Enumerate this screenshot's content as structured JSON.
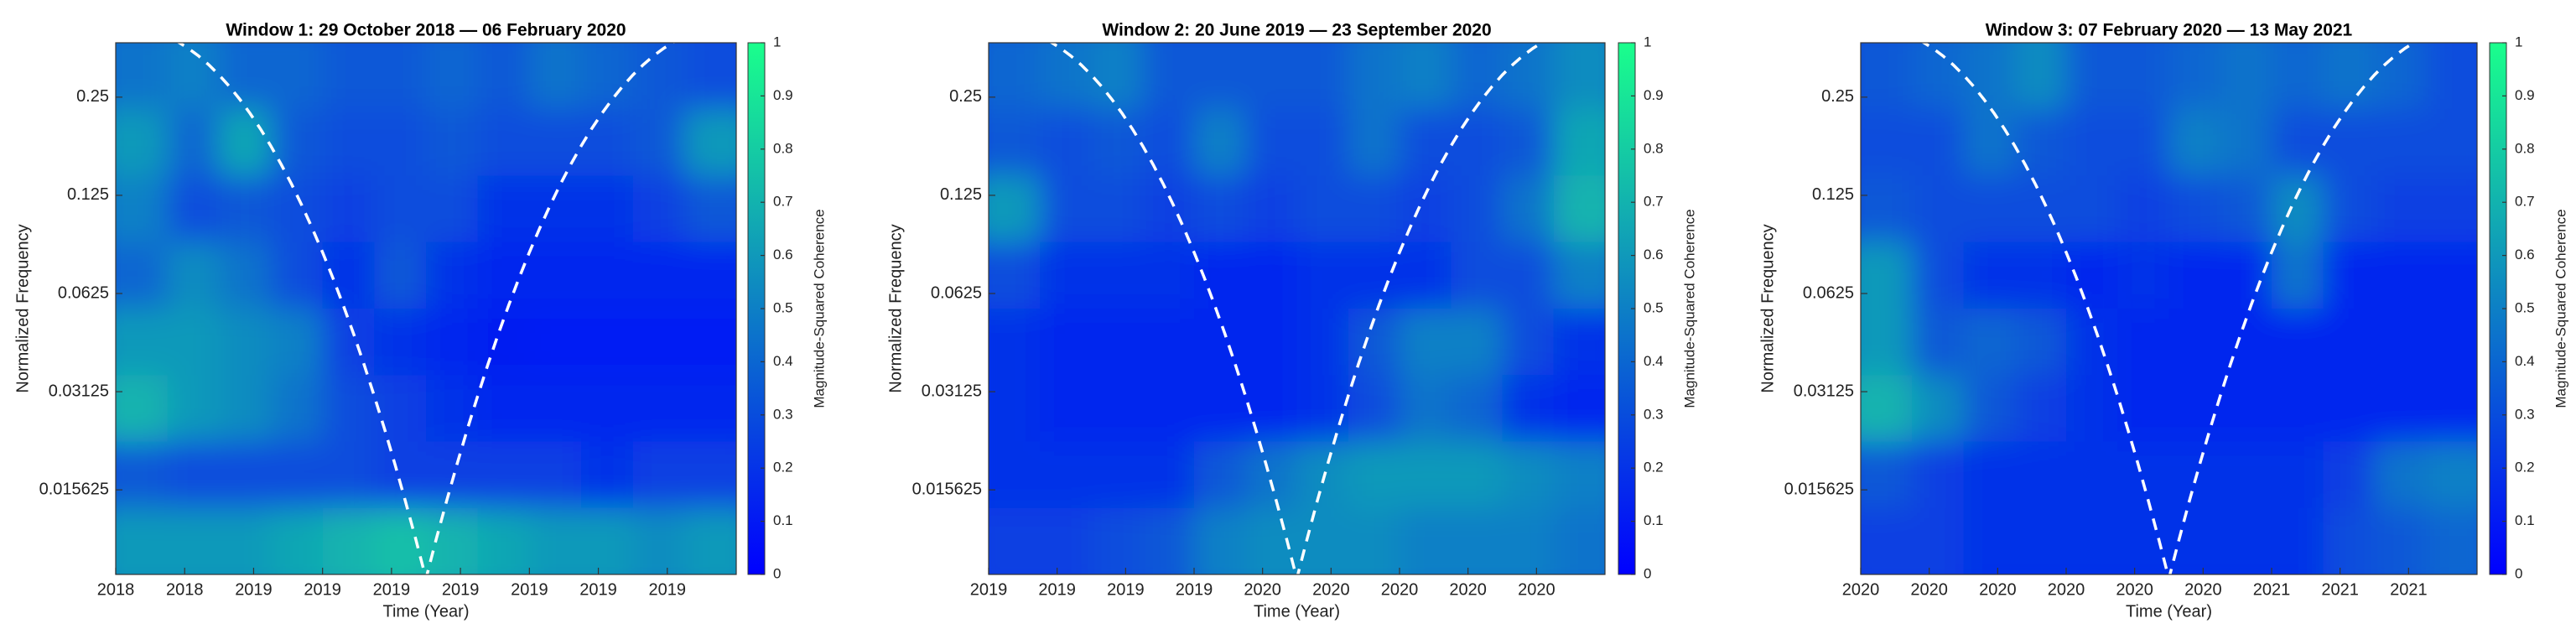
{
  "chart_data": [
    {
      "type": "heatmap",
      "title": "Window 1: 29 October 2018 — 06 February 2020",
      "xlabel": "Time (Year)",
      "ylabel": "Normalized Frequency",
      "colorbar_label": "Magnitude-Squared Coherence",
      "xtick_labels": [
        "2018",
        "2018",
        "2019",
        "2019",
        "2019",
        "2019",
        "2019",
        "2019",
        "2019"
      ],
      "ylim": [
        0.0086,
        0.367
      ],
      "yticks": [
        0.015625,
        0.03125,
        0.0625,
        0.125,
        0.25
      ],
      "log_y": true,
      "clim": [
        0,
        1
      ],
      "cticks": [
        0,
        0.1,
        0.2,
        0.3,
        0.4,
        0.5,
        0.6,
        0.7,
        0.8,
        0.9,
        1
      ],
      "colormap": [
        "#0000ff",
        "#1aff8c"
      ],
      "z": [
        [
          0.45,
          0.5,
          0.4,
          0.4,
          0.35,
          0.35,
          0.4,
          0.35,
          0.45,
          0.4,
          0.35,
          0.3
        ],
        [
          0.6,
          0.4,
          0.65,
          0.35,
          0.3,
          0.3,
          0.35,
          0.3,
          0.3,
          0.3,
          0.35,
          0.6
        ],
        [
          0.5,
          0.3,
          0.35,
          0.3,
          0.25,
          0.3,
          0.3,
          0.2,
          0.2,
          0.2,
          0.25,
          0.35
        ],
        [
          0.4,
          0.55,
          0.45,
          0.3,
          0.2,
          0.35,
          0.2,
          0.15,
          0.15,
          0.15,
          0.15,
          0.15
        ],
        [
          0.6,
          0.6,
          0.55,
          0.5,
          0.25,
          0.2,
          0.15,
          0.12,
          0.1,
          0.1,
          0.1,
          0.1
        ],
        [
          0.7,
          0.6,
          0.55,
          0.45,
          0.3,
          0.25,
          0.2,
          0.15,
          0.15,
          0.15,
          0.15,
          0.15
        ],
        [
          0.35,
          0.3,
          0.3,
          0.3,
          0.3,
          0.25,
          0.25,
          0.25,
          0.25,
          0.2,
          0.25,
          0.25
        ],
        [
          0.6,
          0.6,
          0.6,
          0.65,
          0.7,
          0.75,
          0.7,
          0.65,
          0.6,
          0.6,
          0.55,
          0.6
        ]
      ]
    },
    {
      "type": "heatmap",
      "title": "Window 2: 20 June 2019 — 23 September 2020",
      "xlabel": "Time (Year)",
      "ylabel": "Normalized Frequency",
      "colorbar_label": "Magnitude-Squared Coherence",
      "xtick_labels": [
        "2019",
        "2019",
        "2019",
        "2019",
        "2020",
        "2020",
        "2020",
        "2020",
        "2020"
      ],
      "ylim": [
        0.0086,
        0.367
      ],
      "yticks": [
        0.015625,
        0.03125,
        0.0625,
        0.125,
        0.25
      ],
      "log_y": true,
      "clim": [
        0,
        1
      ],
      "cticks": [
        0,
        0.1,
        0.2,
        0.3,
        0.4,
        0.5,
        0.6,
        0.7,
        0.8,
        0.9,
        1
      ],
      "colormap": [
        "#0000ff",
        "#1aff8c"
      ],
      "z": [
        [
          0.4,
          0.45,
          0.5,
          0.35,
          0.35,
          0.35,
          0.35,
          0.45,
          0.5,
          0.4,
          0.45,
          0.55
        ],
        [
          0.35,
          0.3,
          0.35,
          0.3,
          0.5,
          0.3,
          0.3,
          0.45,
          0.3,
          0.3,
          0.35,
          0.65
        ],
        [
          0.6,
          0.3,
          0.3,
          0.25,
          0.3,
          0.25,
          0.3,
          0.3,
          0.25,
          0.3,
          0.45,
          0.7
        ],
        [
          0.3,
          0.2,
          0.2,
          0.2,
          0.15,
          0.15,
          0.2,
          0.2,
          0.2,
          0.3,
          0.3,
          0.5
        ],
        [
          0.2,
          0.15,
          0.15,
          0.15,
          0.15,
          0.15,
          0.2,
          0.35,
          0.5,
          0.5,
          0.3,
          0.2
        ],
        [
          0.2,
          0.15,
          0.15,
          0.15,
          0.15,
          0.15,
          0.2,
          0.3,
          0.45,
          0.4,
          0.2,
          0.15
        ],
        [
          0.2,
          0.2,
          0.2,
          0.2,
          0.35,
          0.45,
          0.55,
          0.6,
          0.6,
          0.6,
          0.55,
          0.5
        ],
        [
          0.25,
          0.25,
          0.3,
          0.35,
          0.5,
          0.55,
          0.55,
          0.55,
          0.5,
          0.5,
          0.5,
          0.45
        ]
      ]
    },
    {
      "type": "heatmap",
      "title": "Window 3: 07 February 2020 — 13 May 2021",
      "xlabel": "Time (Year)",
      "ylabel": "Normalized Frequency",
      "colorbar_label": "Magnitude-Squared Coherence",
      "xtick_labels": [
        "2020",
        "2020",
        "2020",
        "2020",
        "2020",
        "2020",
        "2021",
        "2021",
        "2021"
      ],
      "ylim": [
        0.0086,
        0.367
      ],
      "yticks": [
        0.015625,
        0.03125,
        0.0625,
        0.125,
        0.25
      ],
      "log_y": true,
      "clim": [
        0,
        1
      ],
      "cticks": [
        0,
        0.1,
        0.2,
        0.3,
        0.4,
        0.5,
        0.6,
        0.7,
        0.8,
        0.9,
        1
      ],
      "colormap": [
        "#0000ff",
        "#1aff8c"
      ],
      "z": [
        [
          0.35,
          0.4,
          0.45,
          0.55,
          0.35,
          0.35,
          0.4,
          0.45,
          0.4,
          0.45,
          0.4,
          0.3
        ],
        [
          0.3,
          0.3,
          0.45,
          0.35,
          0.3,
          0.3,
          0.5,
          0.45,
          0.3,
          0.3,
          0.3,
          0.3
        ],
        [
          0.35,
          0.3,
          0.3,
          0.3,
          0.3,
          0.25,
          0.3,
          0.35,
          0.55,
          0.3,
          0.25,
          0.25
        ],
        [
          0.6,
          0.3,
          0.2,
          0.2,
          0.15,
          0.2,
          0.15,
          0.15,
          0.45,
          0.15,
          0.15,
          0.15
        ],
        [
          0.6,
          0.35,
          0.4,
          0.35,
          0.2,
          0.15,
          0.15,
          0.15,
          0.15,
          0.15,
          0.15,
          0.15
        ],
        [
          0.7,
          0.55,
          0.35,
          0.25,
          0.2,
          0.15,
          0.15,
          0.15,
          0.15,
          0.15,
          0.15,
          0.15
        ],
        [
          0.35,
          0.25,
          0.2,
          0.2,
          0.2,
          0.2,
          0.2,
          0.2,
          0.2,
          0.25,
          0.45,
          0.5
        ],
        [
          0.25,
          0.25,
          0.2,
          0.2,
          0.2,
          0.2,
          0.2,
          0.2,
          0.2,
          0.3,
          0.35,
          0.4
        ]
      ]
    }
  ]
}
